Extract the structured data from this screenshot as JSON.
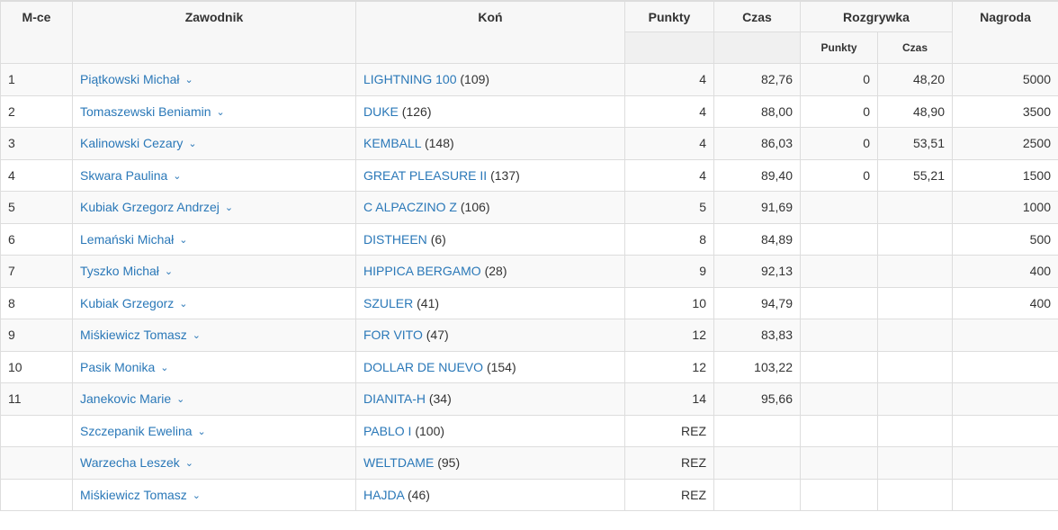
{
  "headers": {
    "place": "M-ce",
    "rider": "Zawodnik",
    "horse": "Koń",
    "points": "Punkty",
    "time": "Czas",
    "jumpoff": "Rozgrywka",
    "jumpoff_points": "Punkty",
    "jumpoff_time": "Czas",
    "prize": "Nagroda"
  },
  "rows": [
    {
      "place": "1",
      "rider": "Piątkowski Michał",
      "horse": "LIGHTNING 100",
      "horse_no": "(109)",
      "points": "4",
      "time": "82,76",
      "jo_points": "0",
      "jo_time": "48,20",
      "prize": "5000"
    },
    {
      "place": "2",
      "rider": "Tomaszewski Beniamin",
      "horse": "DUKE",
      "horse_no": "(126)",
      "points": "4",
      "time": "88,00",
      "jo_points": "0",
      "jo_time": "48,90",
      "prize": "3500"
    },
    {
      "place": "3",
      "rider": "Kalinowski Cezary",
      "horse": "KEMBALL",
      "horse_no": "(148)",
      "points": "4",
      "time": "86,03",
      "jo_points": "0",
      "jo_time": "53,51",
      "prize": "2500"
    },
    {
      "place": "4",
      "rider": "Skwara Paulina",
      "horse": "GREAT PLEASURE II",
      "horse_no": "(137)",
      "points": "4",
      "time": "89,40",
      "jo_points": "0",
      "jo_time": "55,21",
      "prize": "1500"
    },
    {
      "place": "5",
      "rider": "Kubiak Grzegorz Andrzej",
      "horse": "C ALPACZINO Z",
      "horse_no": "(106)",
      "points": "5",
      "time": "91,69",
      "jo_points": "",
      "jo_time": "",
      "prize": "1000"
    },
    {
      "place": "6",
      "rider": "Lemański Michał",
      "horse": "DISTHEEN",
      "horse_no": "(6)",
      "points": "8",
      "time": "84,89",
      "jo_points": "",
      "jo_time": "",
      "prize": "500"
    },
    {
      "place": "7",
      "rider": "Tyszko Michał",
      "horse": "HIPPICA BERGAMO",
      "horse_no": "(28)",
      "points": "9",
      "time": "92,13",
      "jo_points": "",
      "jo_time": "",
      "prize": "400"
    },
    {
      "place": "8",
      "rider": "Kubiak Grzegorz",
      "horse": "SZULER",
      "horse_no": "(41)",
      "points": "10",
      "time": "94,79",
      "jo_points": "",
      "jo_time": "",
      "prize": "400"
    },
    {
      "place": "9",
      "rider": "Miśkiewicz Tomasz",
      "horse": "FOR VITO",
      "horse_no": "(47)",
      "points": "12",
      "time": "83,83",
      "jo_points": "",
      "jo_time": "",
      "prize": ""
    },
    {
      "place": "10",
      "rider": "Pasik Monika",
      "horse": "DOLLAR DE NUEVO",
      "horse_no": "(154)",
      "points": "12",
      "time": "103,22",
      "jo_points": "",
      "jo_time": "",
      "prize": ""
    },
    {
      "place": "11",
      "rider": "Janekovic Marie",
      "horse": "DIANITA-H",
      "horse_no": "(34)",
      "points": "14",
      "time": "95,66",
      "jo_points": "",
      "jo_time": "",
      "prize": ""
    },
    {
      "place": "",
      "rider": "Szczepanik Ewelina",
      "horse": "PABLO I",
      "horse_no": "(100)",
      "points": "REZ",
      "time": "",
      "jo_points": "",
      "jo_time": "",
      "prize": ""
    },
    {
      "place": "",
      "rider": "Warzecha Leszek",
      "horse": "WELTDAME",
      "horse_no": "(95)",
      "points": "REZ",
      "time": "",
      "jo_points": "",
      "jo_time": "",
      "prize": ""
    },
    {
      "place": "",
      "rider": "Miśkiewicz Tomasz",
      "horse": "HAJDA",
      "horse_no": "(46)",
      "points": "REZ",
      "time": "",
      "jo_points": "",
      "jo_time": "",
      "prize": ""
    }
  ],
  "icons": {
    "expand": "chevron-down-icon"
  },
  "colors": {
    "link": "#2a78b8",
    "header_bg": "#f7f7f7",
    "border": "#dddddd",
    "odd_row": "#f9f9f9"
  }
}
